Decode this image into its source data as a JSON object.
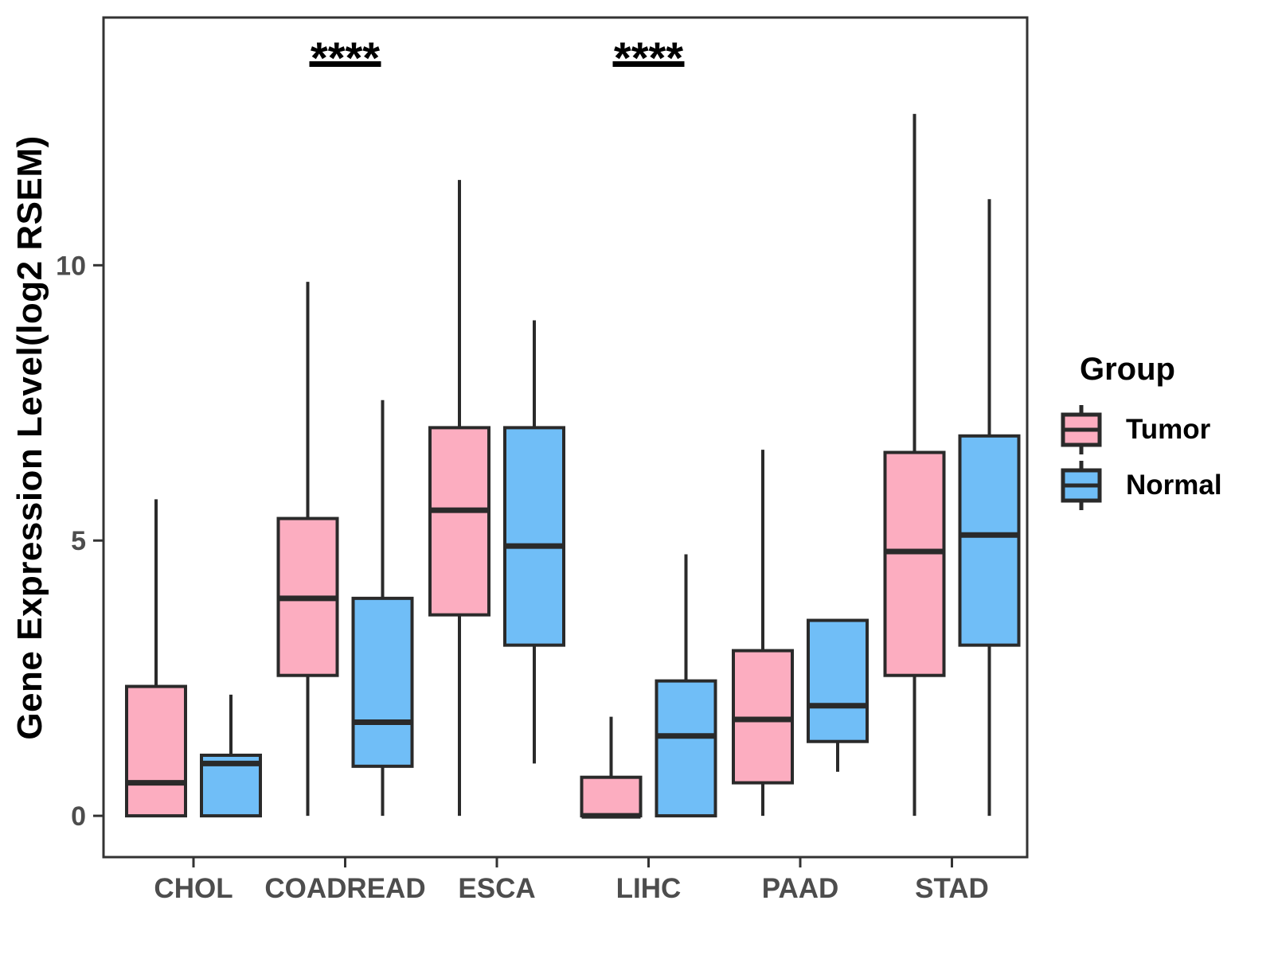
{
  "chart_data": {
    "type": "grouped_boxplot",
    "title": "",
    "xlabel": "",
    "ylabel": "Gene Expression Level(log2 RSEM)",
    "categories": [
      "CHOL",
      "COADREAD",
      "ESCA",
      "LIHC",
      "PAAD",
      "STAD"
    ],
    "y_ticks": [
      0,
      5,
      10
    ],
    "y_tick_labels": [
      "0",
      "5",
      "10"
    ],
    "ylim": [
      -0.75,
      14.5
    ],
    "grid": "off",
    "legend_position": "right",
    "legend": {
      "title": "Group",
      "entries": [
        {
          "label": "Tumor",
          "color": "#FCADC0"
        },
        {
          "label": "Normal",
          "color": "#70BEF7"
        }
      ]
    },
    "series": [
      {
        "name": "Tumor",
        "color": "#FCADC0",
        "boxes": [
          {
            "category": "CHOL",
            "whisker_low": 0,
            "q1": 0,
            "median": 0.6,
            "q3": 2.35,
            "whisker_high": 5.75
          },
          {
            "category": "COADREAD",
            "whisker_low": 0,
            "q1": 2.55,
            "median": 3.95,
            "q3": 5.4,
            "whisker_high": 9.7
          },
          {
            "category": "ESCA",
            "whisker_low": 0,
            "q1": 3.65,
            "median": 5.55,
            "q3": 7.05,
            "whisker_high": 11.55
          },
          {
            "category": "LIHC",
            "whisker_low": 0,
            "q1": 0,
            "median": 0,
            "q3": 0.7,
            "whisker_high": 1.8
          },
          {
            "category": "PAAD",
            "whisker_low": 0,
            "q1": 0.6,
            "median": 1.75,
            "q3": 3.0,
            "whisker_high": 6.65
          },
          {
            "category": "STAD",
            "whisker_low": 0,
            "q1": 2.55,
            "median": 4.8,
            "q3": 6.6,
            "whisker_high": 12.75
          }
        ]
      },
      {
        "name": "Normal",
        "color": "#70BEF7",
        "boxes": [
          {
            "category": "CHOL",
            "whisker_low": 0,
            "q1": 0,
            "median": 0.95,
            "q3": 1.1,
            "whisker_high": 2.2
          },
          {
            "category": "COADREAD",
            "whisker_low": 0,
            "q1": 0.9,
            "median": 1.7,
            "q3": 3.95,
            "whisker_high": 7.55
          },
          {
            "category": "ESCA",
            "whisker_low": 0.95,
            "q1": 3.1,
            "median": 4.9,
            "q3": 7.05,
            "whisker_high": 9.0
          },
          {
            "category": "LIHC",
            "whisker_low": 0,
            "q1": 0,
            "median": 1.45,
            "q3": 2.45,
            "whisker_high": 4.75
          },
          {
            "category": "PAAD",
            "whisker_low": 0.8,
            "q1": 1.35,
            "median": 2.0,
            "q3": 3.55,
            "whisker_high": 3.55
          },
          {
            "category": "STAD",
            "whisker_low": 0,
            "q1": 3.1,
            "median": 5.1,
            "q3": 6.9,
            "whisker_high": 11.2
          }
        ]
      }
    ],
    "significance": [
      {
        "category": "COADREAD",
        "label": "****"
      },
      {
        "category": "LIHC",
        "label": "****"
      }
    ],
    "colors": {
      "box_stroke": "#2A2A2A",
      "panel_border": "#333333",
      "tick": "#333333",
      "tick_label": "#4D4D4D",
      "annotation": "#000000"
    }
  }
}
